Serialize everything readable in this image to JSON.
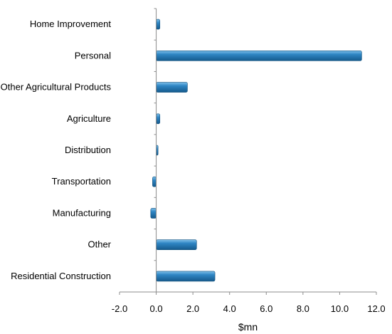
{
  "chart_data": {
    "type": "bar",
    "orientation": "horizontal",
    "categories": [
      "Home Improvement",
      "Personal",
      "Other Agricultural Products",
      "Agriculture",
      "Distribution",
      "Transportation",
      "Manufacturing",
      "Other",
      "Residential Construction"
    ],
    "values": [
      0.2,
      11.2,
      1.7,
      0.2,
      0.1,
      -0.2,
      -0.3,
      2.2,
      3.2
    ],
    "xlabel": "$mn",
    "xlim": [
      -2.0,
      12.0
    ],
    "xticks": [
      "-2.0",
      "0.0",
      "2.0",
      "4.0",
      "6.0",
      "8.0",
      "10.0",
      "12.0"
    ],
    "grid": false,
    "legend": "none",
    "bar_color": "#1f6fa8"
  }
}
